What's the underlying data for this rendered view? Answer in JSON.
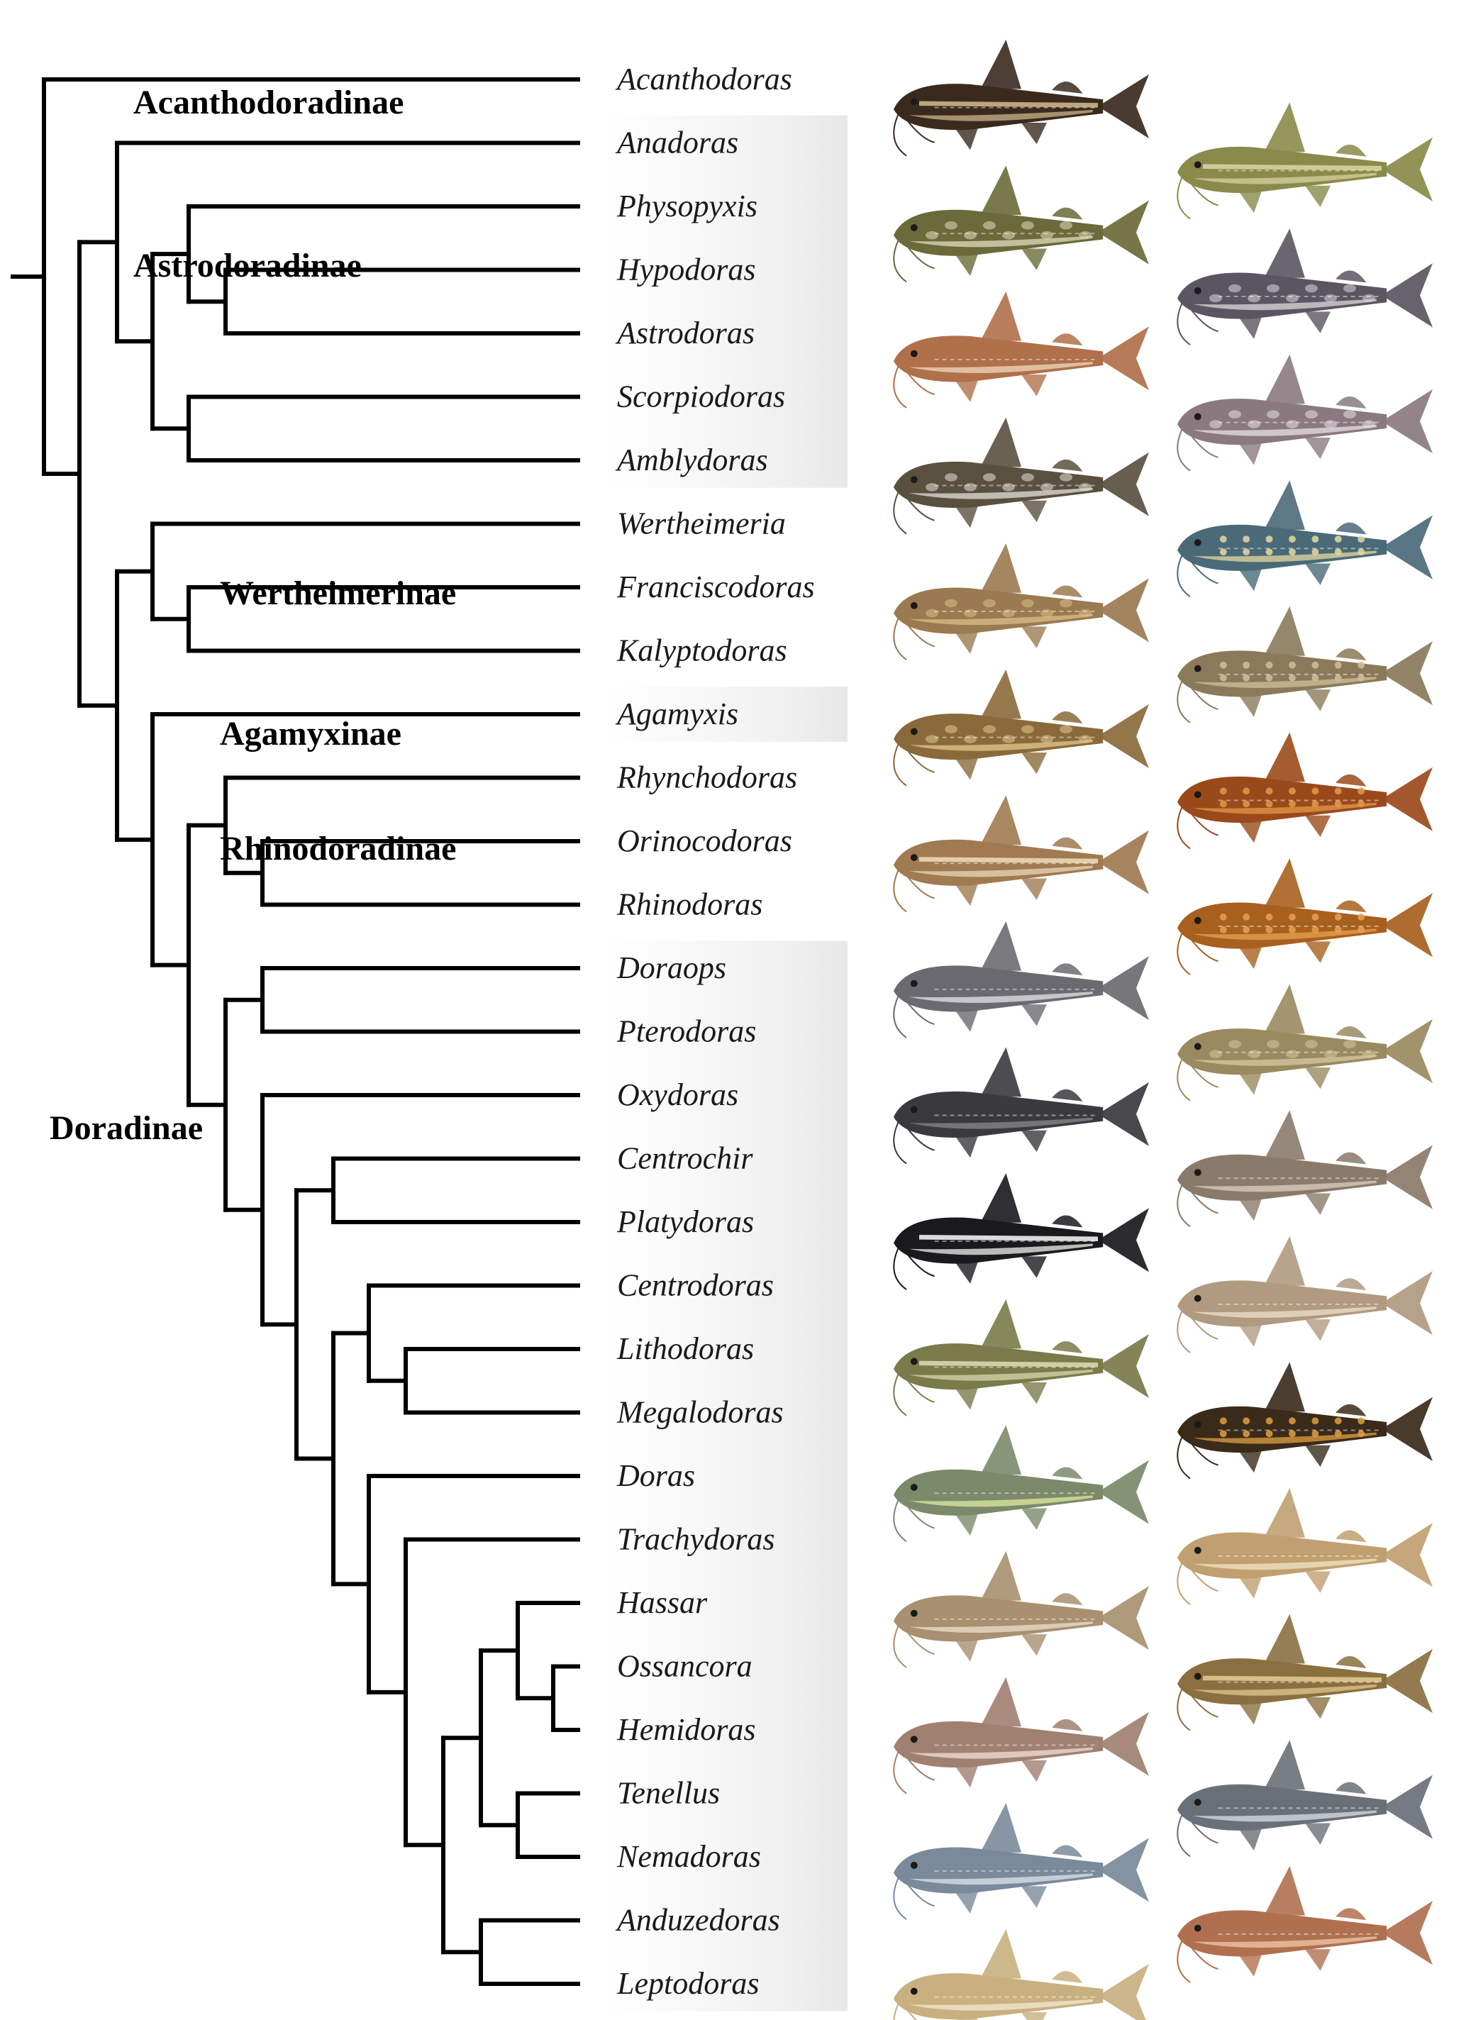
{
  "figure": {
    "tree": [
      "(",
      "Acanthodoras",
      ",",
      "(",
      "(",
      "Anadoras",
      ",",
      "(",
      "(",
      "Physopyxis",
      ",",
      "(",
      "Hypodoras",
      ",",
      "Astrodoras",
      ")",
      ")",
      ",",
      "(",
      "Scorpiodoras",
      ",",
      "Amblydoras",
      ")",
      ")",
      ")",
      ",",
      "(",
      "(",
      "Wertheimeria",
      ",",
      "(",
      "Franciscodoras",
      ",",
      "Kalyptodoras",
      ")",
      ")",
      ",",
      "(",
      "Agamyxis",
      ",",
      "(",
      "(",
      "Rhynchodoras",
      ",",
      "(",
      "Orinocodoras",
      ",",
      "Rhinodoras",
      ")",
      ")",
      ",",
      "(",
      "(",
      "Doraops",
      ",",
      "Pterodoras",
      ")",
      ",",
      "(",
      "Oxydoras",
      ",",
      "(",
      "(",
      "Centrochir",
      ",",
      "Platydoras",
      ")",
      ",",
      "(",
      "(",
      "Centrodoras",
      ",",
      "(",
      "Lithodoras",
      ",",
      "Megalodoras",
      ")",
      ")",
      ",",
      "(",
      "Doras",
      ",",
      "(",
      "Trachydoras",
      ",",
      "(",
      "(",
      "(",
      "Hassar",
      ",",
      "(",
      "Ossancora",
      ",",
      "Hemidoras",
      ")",
      ")",
      ",",
      "(",
      "Tenellus",
      ",",
      "Nemadoras",
      ")",
      ")",
      ",",
      "(",
      "Anduzedoras",
      ",",
      "Leptodoras",
      ")",
      ")",
      ")",
      ")",
      ")",
      ")",
      ")",
      ")",
      ")",
      ")",
      ")",
      ")",
      ")",
      ")"
    ],
    "subfamilies": [
      {
        "name": "Acanthodoradinae",
        "first": "Acanthodoras",
        "last": "Acanthodoras"
      },
      {
        "name": "Astrodoradinae",
        "first": "Anadoras",
        "last": "Amblydoras"
      },
      {
        "name": "Wertheimerinae",
        "first": "Wertheimeria",
        "last": "Kalyptodoras"
      },
      {
        "name": "Agamyxinae",
        "first": "Agamyxis",
        "last": "Agamyxis"
      },
      {
        "name": "Rhinodoradinae",
        "first": "Rhynchodoras",
        "last": "Rhinodoras"
      },
      {
        "name": "Doradinae",
        "first": "Doraops",
        "last": "Leptodoras"
      }
    ],
    "shaded_blocks": [
      {
        "first": "Anadoras",
        "last": "Amblydoras"
      },
      {
        "first": "Agamyxis",
        "last": "Agamyxis"
      },
      {
        "first": "Doraops",
        "last": "Leptodoras"
      }
    ],
    "fish_photos": [
      {
        "genus": "Acanthodoras",
        "colors": [
          "#3a2a1e",
          "#c9b48a"
        ],
        "pattern": "stripes"
      },
      {
        "genus": "Anadoras",
        "colors": [
          "#8a8a4a",
          "#d8d0a0"
        ],
        "pattern": "stripes"
      },
      {
        "genus": "Physopyxis",
        "colors": [
          "#6a6a3a",
          "#e0dcc0"
        ],
        "pattern": "mottled"
      },
      {
        "genus": "Hypodoras",
        "colors": [
          "#5a5560",
          "#dcd8dc"
        ],
        "pattern": "mottled"
      },
      {
        "genus": "Astrodoras",
        "colors": [
          "#b0704a",
          "#f0d8c0"
        ],
        "pattern": "plain"
      },
      {
        "genus": "Scorpiodoras",
        "colors": [
          "#8a7a80",
          "#e8e0e4"
        ],
        "pattern": "mottled"
      },
      {
        "genus": "Amblydoras",
        "colors": [
          "#5a5040",
          "#e4e0d8"
        ],
        "pattern": "mottled"
      },
      {
        "genus": "Wertheimeria",
        "colors": [
          "#4a6a78",
          "#e8d8a0"
        ],
        "pattern": "spots"
      },
      {
        "genus": "Franciscodoras",
        "colors": [
          "#9a7a50",
          "#d8c08a"
        ],
        "pattern": "mottled"
      },
      {
        "genus": "Kalyptodoras",
        "colors": [
          "#8a7a5a",
          "#d0c09a"
        ],
        "pattern": "spots"
      },
      {
        "genus": "Agamyxis",
        "colors": [
          "#8a6a3a",
          "#e0c890"
        ],
        "pattern": "mottled"
      },
      {
        "genus": "Rhynchodoras",
        "colors": [
          "#9a4a1a",
          "#e09a4a"
        ],
        "pattern": "spots"
      },
      {
        "genus": "Orinocodoras",
        "colors": [
          "#a07a50",
          "#ead8b8"
        ],
        "pattern": "stripes"
      },
      {
        "genus": "Rhinodoras",
        "colors": [
          "#a8601e",
          "#e8a050"
        ],
        "pattern": "spots"
      },
      {
        "genus": "Doraops",
        "colors": [
          "#6a6a70",
          "#e8e4e8"
        ],
        "pattern": "plain"
      },
      {
        "genus": "Pterodoras",
        "colors": [
          "#9a8a60",
          "#d8c8a0"
        ],
        "pattern": "mottled"
      },
      {
        "genus": "Oxydoras",
        "colors": [
          "#3a3a3e",
          "#8a8a8e"
        ],
        "pattern": "plain"
      },
      {
        "genus": "Centrochir",
        "colors": [
          "#8a7a6a",
          "#dcd0c0"
        ],
        "pattern": "plain"
      },
      {
        "genus": "Platydoras",
        "colors": [
          "#1a1a1e",
          "#f0f0ec"
        ],
        "pattern": "stripes"
      },
      {
        "genus": "Centrodoras",
        "colors": [
          "#b09a80",
          "#eee0cc"
        ],
        "pattern": "plain"
      },
      {
        "genus": "Lithodoras",
        "colors": [
          "#7a7a4a",
          "#d8d8b0"
        ],
        "pattern": "stripes"
      },
      {
        "genus": "Megalodoras",
        "colors": [
          "#3a2a1a",
          "#e0a040"
        ],
        "pattern": "spots"
      },
      {
        "genus": "Doras",
        "colors": [
          "#7a8a6a",
          "#e0e8a0"
        ],
        "pattern": "plain"
      },
      {
        "genus": "Trachydoras",
        "colors": [
          "#c0a070",
          "#f4e4c4"
        ],
        "pattern": "plain"
      },
      {
        "genus": "Hassar",
        "colors": [
          "#a89070",
          "#ece0cc"
        ],
        "pattern": "plain"
      },
      {
        "genus": "Ossancora",
        "colors": [
          "#8a7040",
          "#e0c890"
        ],
        "pattern": "stripes"
      },
      {
        "genus": "Hemidoras",
        "colors": [
          "#a08070",
          "#f0e0d8"
        ],
        "pattern": "plain"
      },
      {
        "genus": "Tenellus",
        "colors": [
          "#6a7078",
          "#d8e0e4"
        ],
        "pattern": "plain"
      },
      {
        "genus": "Nemadoras",
        "colors": [
          "#7a8a9a",
          "#dce4ec"
        ],
        "pattern": "plain"
      },
      {
        "genus": "Anduzedoras",
        "colors": [
          "#b07050",
          "#f0c8a8"
        ],
        "pattern": "plain"
      },
      {
        "genus": "Leptodoras",
        "colors": [
          "#c8b080",
          "#f4ead0"
        ],
        "pattern": "plain"
      }
    ]
  }
}
